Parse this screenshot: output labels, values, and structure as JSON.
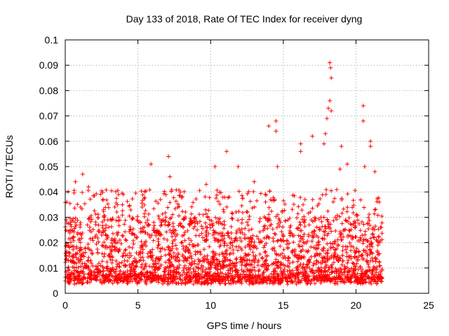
{
  "chart_data": {
    "type": "scatter",
    "title": "Day 133 of 2018, Rate Of TEC Index for receiver dyng",
    "xlabel": "GPS time / hours",
    "ylabel": "ROTI / TECUs",
    "xlim": [
      0,
      25
    ],
    "ylim": [
      0,
      0.1
    ],
    "xticks": [
      "0",
      "5",
      "10",
      "15",
      "20",
      "25"
    ],
    "yticks": [
      "0",
      "0.01",
      "0.02",
      "0.03",
      "0.04",
      "0.05",
      "0.06",
      "0.07",
      "0.08",
      "0.09",
      "0.1"
    ],
    "grid": true,
    "marker": "+",
    "color": "#ff0000",
    "x_range_data": [
      0,
      21.8
    ],
    "baseline_band": [
      0.005,
      0.03
    ],
    "notable_points": [
      {
        "x": 0.1,
        "y": 0.036
      },
      {
        "x": 0.7,
        "y": 0.044
      },
      {
        "x": 1.2,
        "y": 0.047
      },
      {
        "x": 1.6,
        "y": 0.042
      },
      {
        "x": 4.0,
        "y": 0.039
      },
      {
        "x": 5.9,
        "y": 0.051
      },
      {
        "x": 7.1,
        "y": 0.054
      },
      {
        "x": 7.2,
        "y": 0.046
      },
      {
        "x": 9.7,
        "y": 0.043
      },
      {
        "x": 10.3,
        "y": 0.05
      },
      {
        "x": 11.1,
        "y": 0.056
      },
      {
        "x": 11.9,
        "y": 0.05
      },
      {
        "x": 13.0,
        "y": 0.044
      },
      {
        "x": 14.0,
        "y": 0.066
      },
      {
        "x": 14.5,
        "y": 0.068
      },
      {
        "x": 14.5,
        "y": 0.064
      },
      {
        "x": 14.6,
        "y": 0.05
      },
      {
        "x": 16.2,
        "y": 0.059
      },
      {
        "x": 16.2,
        "y": 0.056
      },
      {
        "x": 17.0,
        "y": 0.062
      },
      {
        "x": 17.8,
        "y": 0.059
      },
      {
        "x": 18.2,
        "y": 0.091
      },
      {
        "x": 18.25,
        "y": 0.089
      },
      {
        "x": 18.3,
        "y": 0.085
      },
      {
        "x": 18.2,
        "y": 0.076
      },
      {
        "x": 18.1,
        "y": 0.073
      },
      {
        "x": 18.3,
        "y": 0.072
      },
      {
        "x": 18.0,
        "y": 0.069
      },
      {
        "x": 17.9,
        "y": 0.063
      },
      {
        "x": 19.0,
        "y": 0.058
      },
      {
        "x": 19.4,
        "y": 0.051
      },
      {
        "x": 18.9,
        "y": 0.049
      },
      {
        "x": 20.5,
        "y": 0.074
      },
      {
        "x": 20.5,
        "y": 0.068
      },
      {
        "x": 20.6,
        "y": 0.05
      },
      {
        "x": 21.0,
        "y": 0.06
      },
      {
        "x": 21.0,
        "y": 0.058
      },
      {
        "x": 21.3,
        "y": 0.048
      },
      {
        "x": 21.6,
        "y": 0.036
      }
    ]
  }
}
